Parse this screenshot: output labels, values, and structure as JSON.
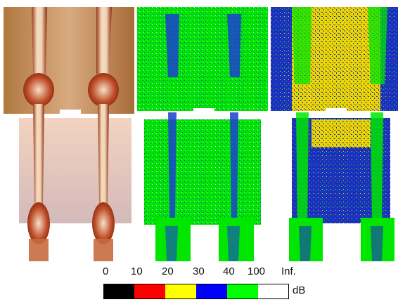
{
  "figure": {
    "panels": [
      {
        "id": "render",
        "kind": "volume-rendering"
      },
      {
        "id": "error-map-1",
        "kind": "error-map"
      },
      {
        "id": "error-map-2",
        "kind": "error-map"
      }
    ]
  },
  "colorbar": {
    "ticks": [
      "0",
      "10",
      "20",
      "30",
      "40",
      "100",
      "Inf."
    ],
    "unit": "dB",
    "segments": [
      {
        "range": "0-10",
        "color": "#000000"
      },
      {
        "range": "10-20",
        "color": "#ff0000"
      },
      {
        "range": "20-30",
        "color": "#ffff00"
      },
      {
        "range": "30-40",
        "color": "#0000ff"
      },
      {
        "range": "40-100",
        "color": "#00ff00"
      },
      {
        "range": "100-Inf.",
        "color": "#ffffff"
      }
    ]
  },
  "colors": {
    "bone": "#e8c9a8",
    "bone_shadow": "#8b1a0a",
    "plate": "#c89a70",
    "error_green": "#00ee00",
    "error_blue": "#1030c8",
    "error_yellow": "#f0e000"
  }
}
